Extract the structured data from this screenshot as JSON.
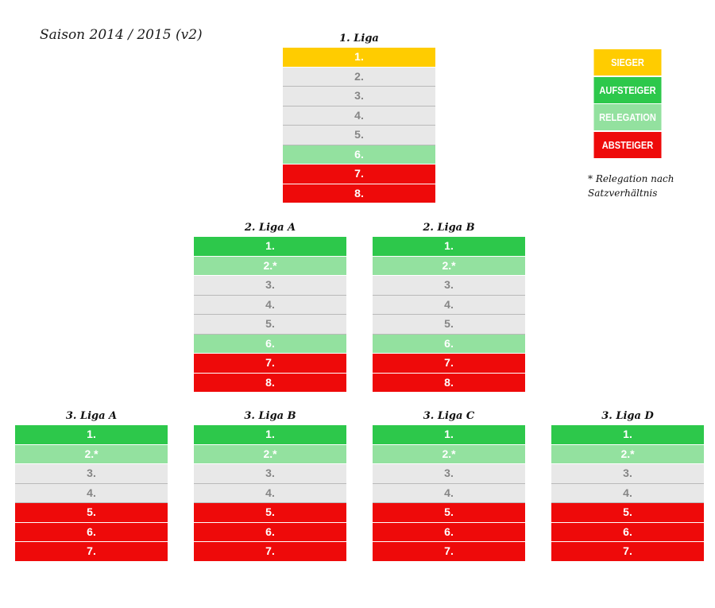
{
  "season_title": "Saison 2014 / 2015 (v2)",
  "colors": {
    "sieger": "#FFCC00",
    "aufsteiger": "#2DC84B",
    "relegation": "#93E19F",
    "absteiger": "#EE0A0A",
    "neutral": "#E8E8E8",
    "neutral_text": "#858585",
    "light_text": "#ffffff"
  },
  "legend": {
    "items": [
      {
        "key": "sieger",
        "label": "SIEGER"
      },
      {
        "key": "aufsteiger",
        "label": "AUFSTEIGER"
      },
      {
        "key": "relegation",
        "label": "RELEGATION"
      },
      {
        "key": "absteiger",
        "label": "ABSTEIGER"
      }
    ],
    "footnote": "* Relegation nach Satzverhältnis"
  },
  "leagues": [
    {
      "id": "liga1",
      "title": "1. Liga",
      "rows": [
        {
          "label": "1.",
          "status": "sieger"
        },
        {
          "label": "2.",
          "status": "neutral"
        },
        {
          "label": "3.",
          "status": "neutral"
        },
        {
          "label": "4.",
          "status": "neutral"
        },
        {
          "label": "5.",
          "status": "neutral"
        },
        {
          "label": "6.",
          "status": "relegation"
        },
        {
          "label": "7.",
          "status": "absteiger"
        },
        {
          "label": "8.",
          "status": "absteiger"
        }
      ]
    },
    {
      "id": "liga2a",
      "title": "2. Liga A",
      "rows": [
        {
          "label": "1.",
          "status": "aufsteiger"
        },
        {
          "label": "2.*",
          "status": "relegation"
        },
        {
          "label": "3.",
          "status": "neutral"
        },
        {
          "label": "4.",
          "status": "neutral"
        },
        {
          "label": "5.",
          "status": "neutral"
        },
        {
          "label": "6.",
          "status": "relegation"
        },
        {
          "label": "7.",
          "status": "absteiger"
        },
        {
          "label": "8.",
          "status": "absteiger"
        }
      ]
    },
    {
      "id": "liga2b",
      "title": "2. Liga B",
      "rows": [
        {
          "label": "1.",
          "status": "aufsteiger"
        },
        {
          "label": "2.*",
          "status": "relegation"
        },
        {
          "label": "3.",
          "status": "neutral"
        },
        {
          "label": "4.",
          "status": "neutral"
        },
        {
          "label": "5.",
          "status": "neutral"
        },
        {
          "label": "6.",
          "status": "relegation"
        },
        {
          "label": "7.",
          "status": "absteiger"
        },
        {
          "label": "8.",
          "status": "absteiger"
        }
      ]
    },
    {
      "id": "liga3a",
      "title": "3. Liga A",
      "rows": [
        {
          "label": "1.",
          "status": "aufsteiger"
        },
        {
          "label": "2.*",
          "status": "relegation"
        },
        {
          "label": "3.",
          "status": "neutral"
        },
        {
          "label": "4.",
          "status": "neutral"
        },
        {
          "label": "5.",
          "status": "absteiger"
        },
        {
          "label": "6.",
          "status": "absteiger"
        },
        {
          "label": "7.",
          "status": "absteiger"
        }
      ]
    },
    {
      "id": "liga3b",
      "title": "3. Liga B",
      "rows": [
        {
          "label": "1.",
          "status": "aufsteiger"
        },
        {
          "label": "2.*",
          "status": "relegation"
        },
        {
          "label": "3.",
          "status": "neutral"
        },
        {
          "label": "4.",
          "status": "neutral"
        },
        {
          "label": "5.",
          "status": "absteiger"
        },
        {
          "label": "6.",
          "status": "absteiger"
        },
        {
          "label": "7.",
          "status": "absteiger"
        }
      ]
    },
    {
      "id": "liga3c",
      "title": "3. Liga C",
      "rows": [
        {
          "label": "1.",
          "status": "aufsteiger"
        },
        {
          "label": "2.*",
          "status": "relegation"
        },
        {
          "label": "3.",
          "status": "neutral"
        },
        {
          "label": "4.",
          "status": "neutral"
        },
        {
          "label": "5.",
          "status": "absteiger"
        },
        {
          "label": "6.",
          "status": "absteiger"
        },
        {
          "label": "7.",
          "status": "absteiger"
        }
      ]
    },
    {
      "id": "liga3d",
      "title": "3. Liga D",
      "rows": [
        {
          "label": "1.",
          "status": "aufsteiger"
        },
        {
          "label": "2.*",
          "status": "relegation"
        },
        {
          "label": "3.",
          "status": "neutral"
        },
        {
          "label": "4.",
          "status": "neutral"
        },
        {
          "label": "5.",
          "status": "absteiger"
        },
        {
          "label": "6.",
          "status": "absteiger"
        },
        {
          "label": "7.",
          "status": "absteiger"
        }
      ]
    }
  ]
}
